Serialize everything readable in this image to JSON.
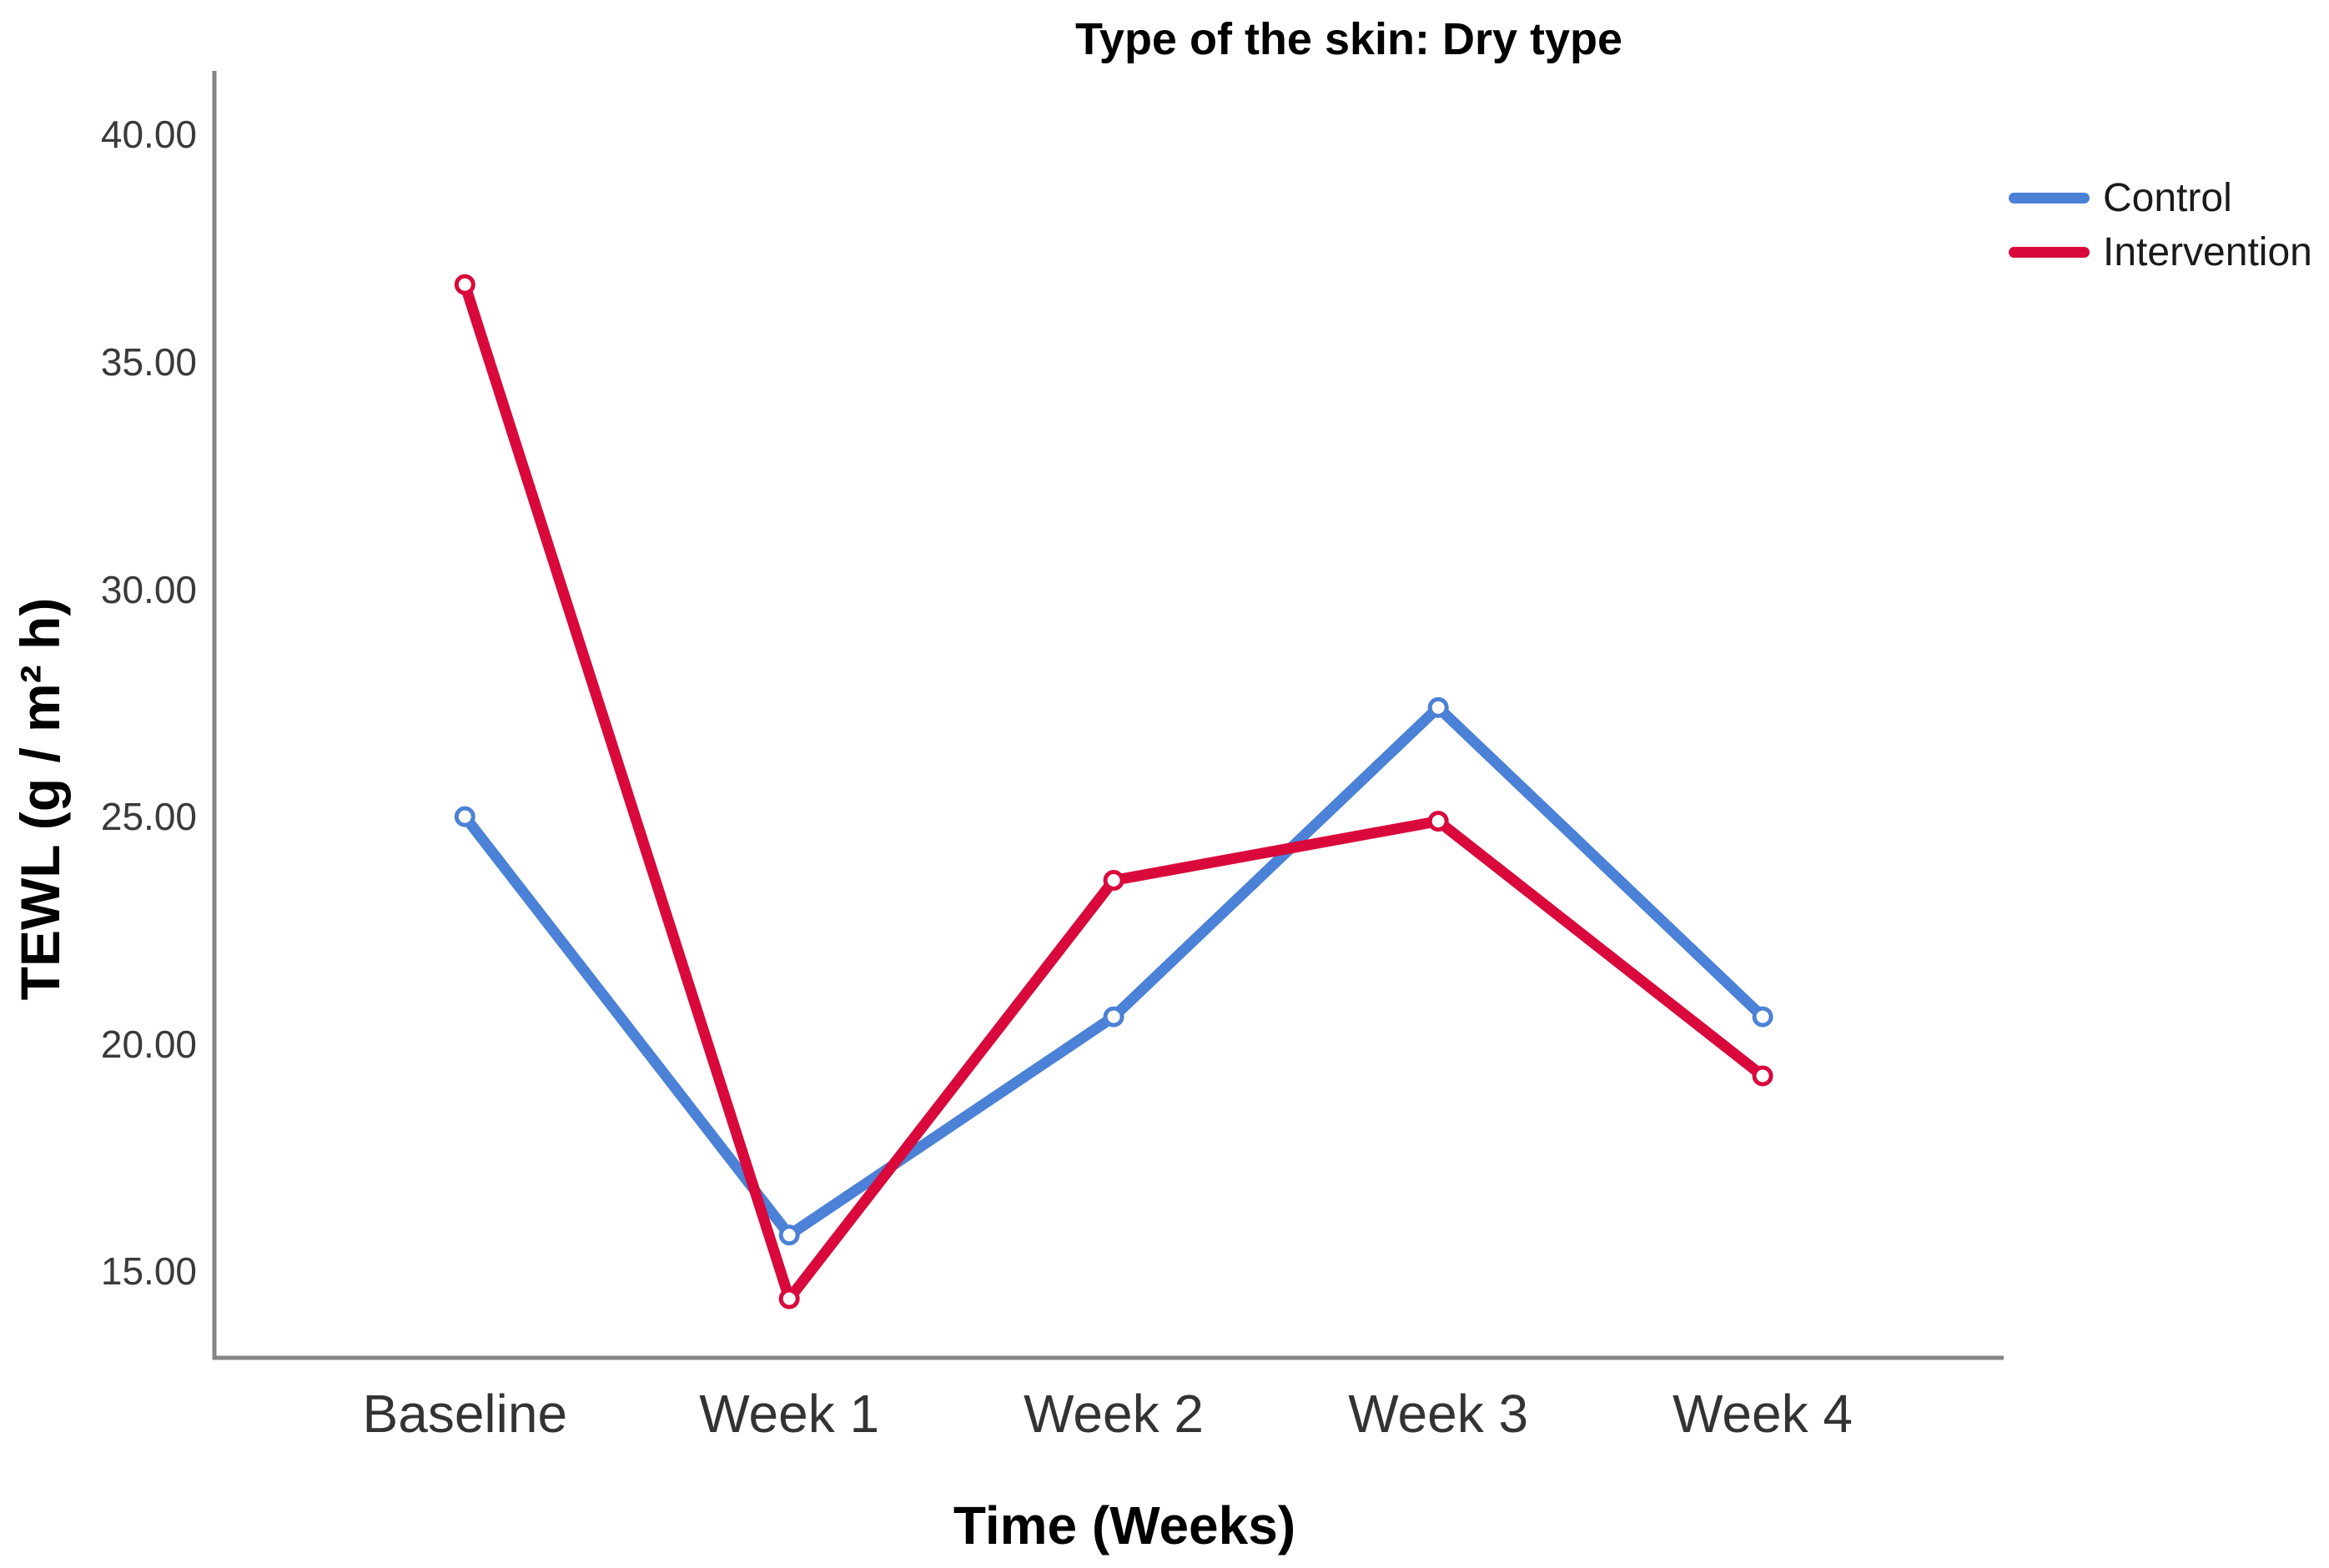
{
  "chart_data": {
    "type": "line",
    "title": "Type of the skin: Dry type",
    "xlabel": "Time (Weeks)",
    "ylabel": "TEWL (g / m² h)",
    "categories": [
      "Baseline",
      "Week 1",
      "Week 2",
      "Week 3",
      "Week 4"
    ],
    "series": [
      {
        "name": "Control",
        "color": "#4B81D6",
        "values": [
          25.0,
          15.8,
          20.6,
          27.4,
          20.6
        ]
      },
      {
        "name": "Intervention",
        "color": "#D9093C",
        "values": [
          36.7,
          14.4,
          23.6,
          24.9,
          19.3
        ]
      }
    ],
    "yticks": [
      15,
      20,
      25,
      30,
      35,
      40
    ],
    "ytick_labels": [
      "15.00",
      "20.00",
      "25.00",
      "30.00",
      "35.00",
      "40.00"
    ],
    "ylim": [
      13.1,
      41.4
    ],
    "grid": false,
    "legend_position": "top-right",
    "marker": "open-circle",
    "axis_color": "#858585"
  },
  "legend": {
    "items": [
      {
        "label": "Control"
      },
      {
        "label": "Intervention"
      }
    ]
  }
}
